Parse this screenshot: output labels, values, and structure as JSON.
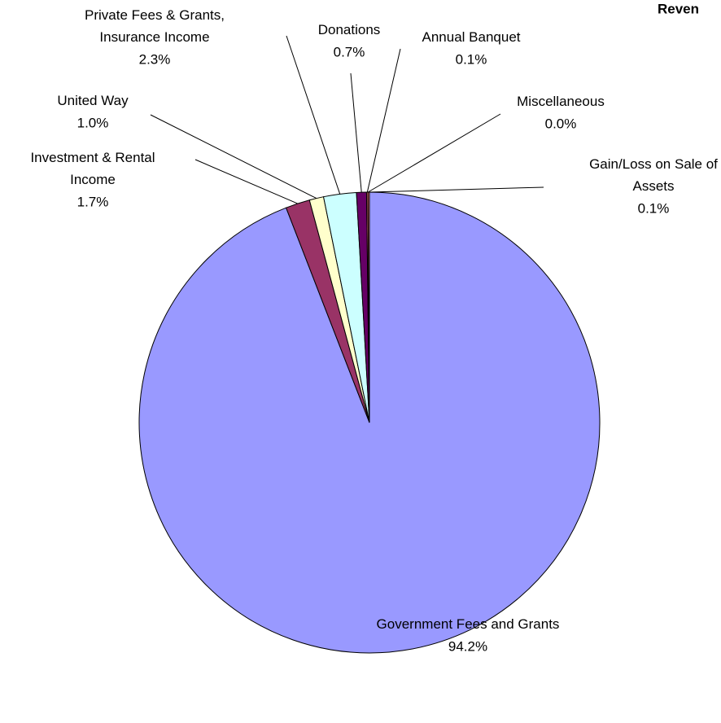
{
  "chart_data": {
    "type": "pie",
    "title": "Reven",
    "categories": [
      "Government Fees and Grants",
      "Investment & Rental Income",
      "United Way",
      "Private Fees & Grants, Insurance Income",
      "Donations",
      "Annual Banquet",
      "Miscellaneous",
      "Gain/Loss on Sale of Assets"
    ],
    "values": [
      94.2,
      1.7,
      1.0,
      2.3,
      0.7,
      0.1,
      0.0,
      0.1
    ],
    "value_labels": [
      "94.2%",
      "1.7%",
      "1.0%",
      "2.3%",
      "0.7%",
      "0.1%",
      "0.0%",
      "0.1%"
    ],
    "colors": [
      "#9999ff",
      "#993366",
      "#ffffcc",
      "#ccffff",
      "#660066",
      "#ff8080",
      "#0066cc",
      "#ff8080"
    ]
  }
}
